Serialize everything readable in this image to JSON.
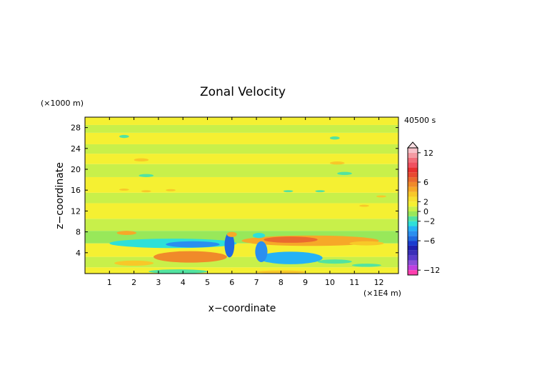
{
  "chart_data": {
    "type": "heatmap",
    "title": "Zonal Velocity",
    "xlabel": "x−coordinate",
    "ylabel": "z−coordinate",
    "x_unit": "(×1E4 m)",
    "y_unit": "(×1000 m)",
    "time_label": "40500 s",
    "xlim": [
      0,
      12.8
    ],
    "ylim": [
      0,
      30
    ],
    "x_ticks": [
      "1",
      "2",
      "3",
      "4",
      "5",
      "6",
      "7",
      "8",
      "9",
      "10",
      "11",
      "12"
    ],
    "y_ticks": [
      "4",
      "8",
      "12",
      "16",
      "20",
      "24",
      "28"
    ],
    "colorbar": {
      "levels": [
        -13,
        -12,
        -11,
        -10,
        -9,
        -8,
        -7,
        -6,
        -5,
        -4,
        -3,
        -2,
        -1,
        0,
        1,
        2,
        3,
        4,
        5,
        6,
        7,
        8,
        9,
        10,
        11,
        12,
        13
      ],
      "colors": [
        "#ff3fae",
        "#c040e0",
        "#8a4fd8",
        "#5a3ccc",
        "#3a2fb8",
        "#2020b0",
        "#1a3cd0",
        "#1f6ae0",
        "#2a8fef",
        "#25b2f5",
        "#2ee0d8",
        "#52e3a0",
        "#98e85a",
        "#c8f04a",
        "#f5f032",
        "#f7e030",
        "#f8c828",
        "#f6a828",
        "#f08a2a",
        "#ea6a2e",
        "#e84a32",
        "#e83030",
        "#f05060",
        "#f26e7a",
        "#f49aa2",
        "#f8c0c8"
      ],
      "tick_labels": [
        "12",
        "6",
        "2",
        "0",
        "−2",
        "−6",
        "−12"
      ],
      "tick_values": [
        12,
        6,
        2,
        0,
        -2,
        -6,
        -12
      ]
    },
    "bands_z": [
      {
        "z": [
          0,
          1.2
        ],
        "u": 1
      },
      {
        "z": [
          1.2,
          3.2
        ],
        "u": 0
      },
      {
        "z": [
          3.2,
          5.8
        ],
        "u": 1
      },
      {
        "z": [
          5.8,
          8.2
        ],
        "u": -0.5
      },
      {
        "z": [
          8.2,
          10.5
        ],
        "u": 0
      },
      {
        "z": [
          10.5,
          13.5
        ],
        "u": 1
      },
      {
        "z": [
          13.5,
          15.5
        ],
        "u": 0
      },
      {
        "z": [
          15.5,
          18.5
        ],
        "u": 1
      },
      {
        "z": [
          18.5,
          21
        ],
        "u": 0
      },
      {
        "z": [
          21,
          23
        ],
        "u": 1
      },
      {
        "z": [
          23,
          24.8
        ],
        "u": 0
      },
      {
        "z": [
          24.8,
          27
        ],
        "u": 1
      },
      {
        "z": [
          27,
          28.5
        ],
        "u": 0
      },
      {
        "z": [
          28.5,
          30
        ],
        "u": 1
      }
    ],
    "features": [
      {
        "x": 3.6,
        "z": 5.8,
        "rx": 2.6,
        "rz": 0.9,
        "u": -3
      },
      {
        "x": 4.4,
        "z": 5.6,
        "rx": 1.1,
        "rz": 0.6,
        "u": -5
      },
      {
        "x": 4.3,
        "z": 3.2,
        "rx": 1.5,
        "rz": 1.1,
        "u": 5
      },
      {
        "x": 2.0,
        "z": 2.0,
        "rx": 0.8,
        "rz": 0.5,
        "u": 3
      },
      {
        "x": 3.8,
        "z": 0.4,
        "rx": 1.2,
        "rz": 0.4,
        "u": -2
      },
      {
        "x": 1.7,
        "z": 7.8,
        "rx": 0.4,
        "rz": 0.4,
        "u": 4
      },
      {
        "x": 5.9,
        "z": 5.5,
        "rx": 0.2,
        "rz": 2.4,
        "u": -6
      },
      {
        "x": 6.0,
        "z": 7.5,
        "rx": 0.2,
        "rz": 0.5,
        "u": 4
      },
      {
        "x": 9.2,
        "z": 6.3,
        "rx": 2.8,
        "rz": 1.0,
        "u": 4
      },
      {
        "x": 8.4,
        "z": 6.5,
        "rx": 1.1,
        "rz": 0.6,
        "u": 6
      },
      {
        "x": 8.4,
        "z": 3.0,
        "rx": 1.3,
        "rz": 1.2,
        "u": -4
      },
      {
        "x": 7.2,
        "z": 4.2,
        "rx": 0.25,
        "rz": 2.0,
        "u": -5
      },
      {
        "x": 7.1,
        "z": 7.3,
        "rx": 0.25,
        "rz": 0.5,
        "u": -3
      },
      {
        "x": 8.0,
        "z": 0.3,
        "rx": 1.0,
        "rz": 0.3,
        "u": 3
      },
      {
        "x": 10.2,
        "z": 2.3,
        "rx": 0.7,
        "rz": 0.4,
        "u": -2
      },
      {
        "x": 11.5,
        "z": 1.6,
        "rx": 0.6,
        "rz": 0.3,
        "u": -2
      },
      {
        "x": 11.5,
        "z": 5.8,
        "rx": 0.7,
        "rz": 0.4,
        "u": 3
      },
      {
        "x": 1.6,
        "z": 26.3,
        "rx": 0.2,
        "rz": 0.3,
        "u": -2
      },
      {
        "x": 2.3,
        "z": 21.8,
        "rx": 0.3,
        "rz": 0.3,
        "u": 3
      },
      {
        "x": 2.5,
        "z": 18.8,
        "rx": 0.3,
        "rz": 0.3,
        "u": -2
      },
      {
        "x": 1.6,
        "z": 16.1,
        "rx": 0.2,
        "rz": 0.2,
        "u": 3
      },
      {
        "x": 2.5,
        "z": 15.8,
        "rx": 0.2,
        "rz": 0.2,
        "u": 3
      },
      {
        "x": 3.5,
        "z": 16.0,
        "rx": 0.2,
        "rz": 0.2,
        "u": 3
      },
      {
        "x": 10.2,
        "z": 26.0,
        "rx": 0.2,
        "rz": 0.3,
        "u": -2
      },
      {
        "x": 10.3,
        "z": 21.2,
        "rx": 0.3,
        "rz": 0.3,
        "u": 3
      },
      {
        "x": 10.6,
        "z": 19.2,
        "rx": 0.3,
        "rz": 0.3,
        "u": -2
      },
      {
        "x": 8.3,
        "z": 15.8,
        "rx": 0.2,
        "rz": 0.2,
        "u": -2
      },
      {
        "x": 9.6,
        "z": 15.8,
        "rx": 0.2,
        "rz": 0.2,
        "u": -2
      },
      {
        "x": 11.4,
        "z": 13.0,
        "rx": 0.2,
        "rz": 0.2,
        "u": 3
      },
      {
        "x": 12.1,
        "z": 14.8,
        "rx": 0.2,
        "rz": 0.2,
        "u": 3
      }
    ]
  }
}
